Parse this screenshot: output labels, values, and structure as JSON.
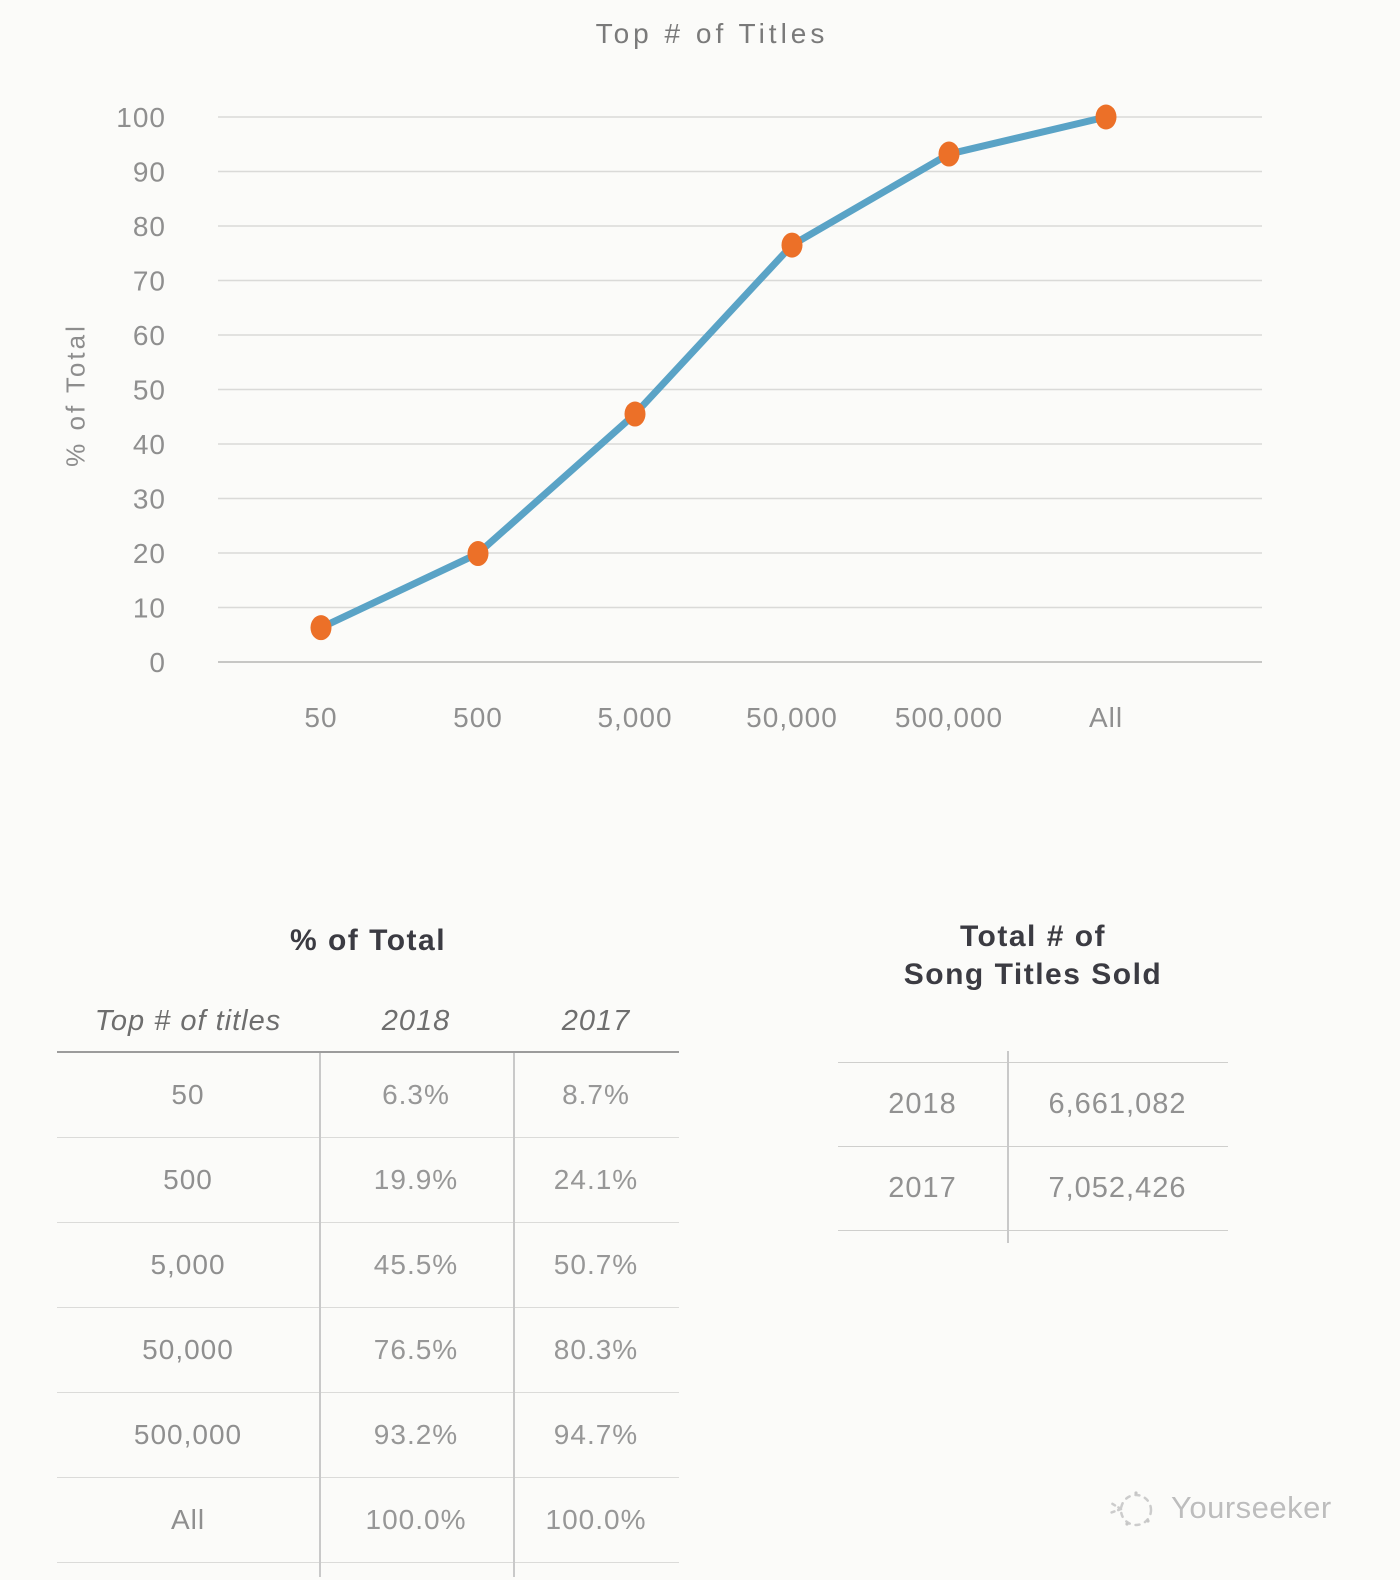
{
  "page": {
    "background": "#fbfbf9"
  },
  "chart_data": {
    "type": "line",
    "title": "Top # of Titles",
    "xlabel": "",
    "ylabel": "% of Total",
    "categories": [
      "50",
      "500",
      "5,000",
      "50,000",
      "500,000",
      "All"
    ],
    "series": [
      {
        "name": "2018",
        "values": [
          6.3,
          19.9,
          45.5,
          76.5,
          93.2,
          100.0
        ]
      }
    ],
    "ylim": [
      0,
      100
    ],
    "yticks": [
      0,
      10,
      20,
      30,
      40,
      50,
      60,
      70,
      80,
      90,
      100
    ],
    "grid": true,
    "legend_position": "none",
    "line_color": "#5AA3C6",
    "marker_color": "#EC7028",
    "gridline_color": "#dadad8",
    "axis_text_color": "#8f8f8f"
  },
  "tables": {
    "percent_of_total": {
      "title": "% of Total",
      "columns": [
        "Top # of titles",
        "2018",
        "2017"
      ],
      "rows": [
        [
          "50",
          "6.3%",
          "8.7%"
        ],
        [
          "500",
          "19.9%",
          "24.1%"
        ],
        [
          "5,000",
          "45.5%",
          "50.7%"
        ],
        [
          "50,000",
          "76.5%",
          "80.3%"
        ],
        [
          "500,000",
          "93.2%",
          "94.7%"
        ],
        [
          "All",
          "100.0%",
          "100.0%"
        ]
      ]
    },
    "total_titles_sold": {
      "title_line1": "Total # of",
      "title_line2": "Song Titles Sold",
      "rows": [
        [
          "2018",
          "6,661,082"
        ],
        [
          "2017",
          "7,052,426"
        ]
      ]
    }
  },
  "watermark": {
    "label": "Yourseeker",
    "icon": "sketch-circle-icon",
    "color": "#bdbdbd"
  }
}
